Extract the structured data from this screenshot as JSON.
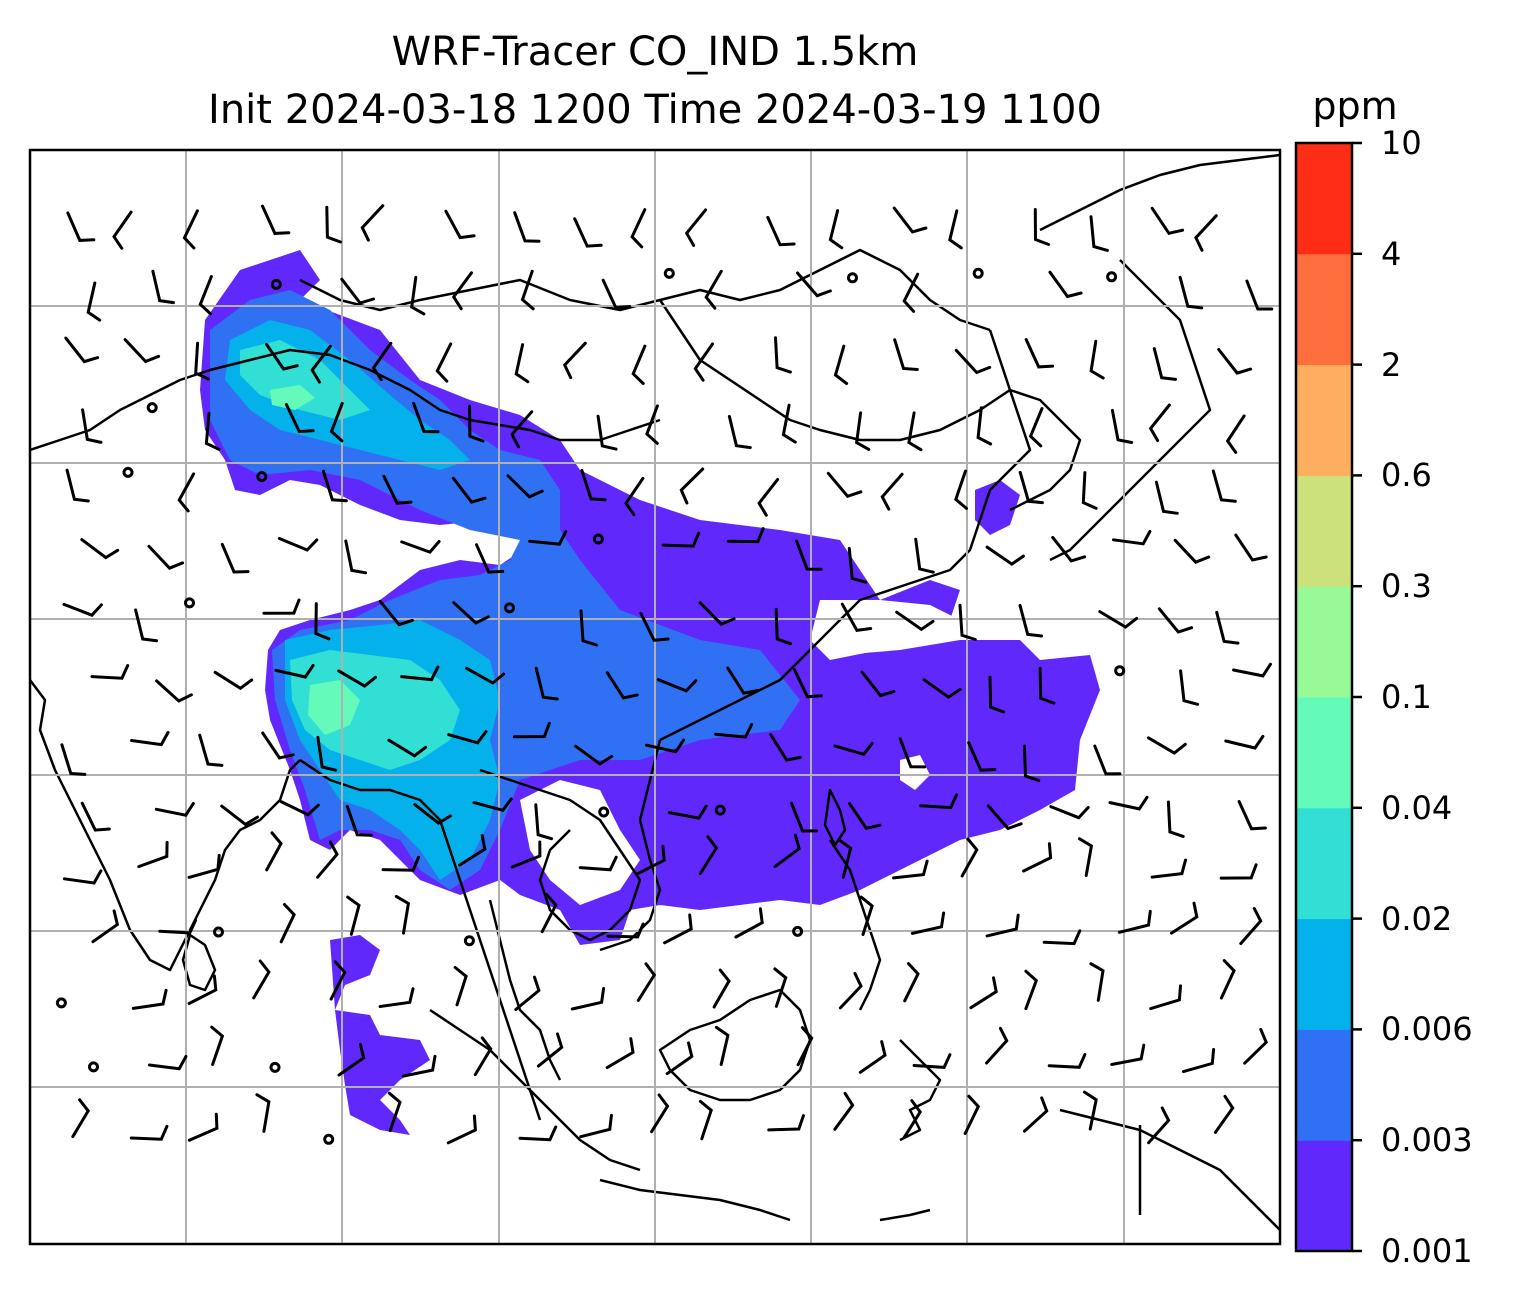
{
  "title_line1": "WRF-Tracer CO_IND 1.5km",
  "title_line2": "Init 2024-03-18 1200 Time 2024-03-19 1100",
  "colorbar": {
    "unit": "ppm",
    "levels": [
      "0.001",
      "0.003",
      "0.006",
      "0.02",
      "0.04",
      "0.1",
      "0.3",
      "0.6",
      "2",
      "4",
      "10"
    ],
    "colors": [
      "#6128fc",
      "#3070f3",
      "#04b1ea",
      "#32dfd5",
      "#64fbba",
      "#98fa97",
      "#cce17a",
      "#ffae60",
      "#ff6f3e",
      "#ff2d16"
    ]
  },
  "map": {
    "background": "#ffffff",
    "gridline_color": "#b0b0b0",
    "coastline_color": "#000000",
    "wind_barb_color": "#000000",
    "gridlines": true
  }
}
